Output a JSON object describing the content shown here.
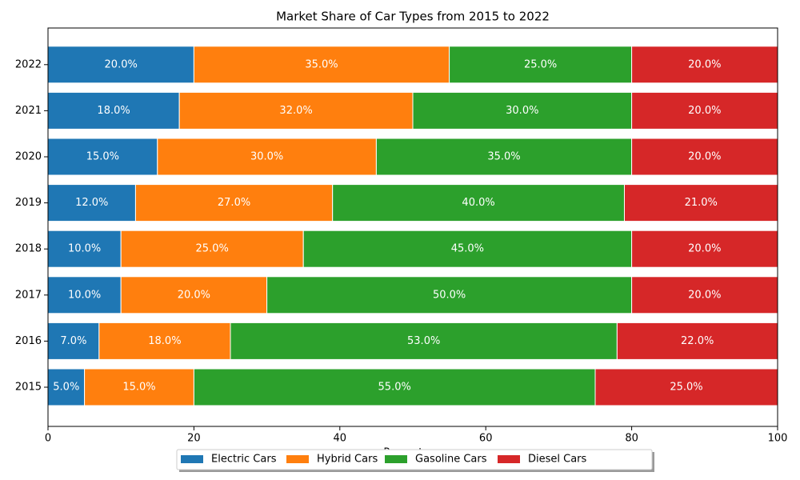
{
  "chart_data": {
    "type": "stacked-barh",
    "title": "Market Share of Car Types from 2015 to 2022",
    "xlabel": "Percentage",
    "categories": [
      "2015",
      "2016",
      "2017",
      "2018",
      "2019",
      "2020",
      "2021",
      "2022"
    ],
    "series": [
      {
        "name": "Electric Cars",
        "color": "#1f77b4",
        "values": [
          5,
          7,
          10,
          10,
          12,
          15,
          18,
          20
        ],
        "value_labels": [
          "5.0%",
          "7.0%",
          "10.0%",
          "10.0%",
          "12.0%",
          "15.0%",
          "18.0%",
          "20.0%"
        ]
      },
      {
        "name": "Hybrid Cars",
        "color": "#ff7f0e",
        "values": [
          15,
          18,
          20,
          25,
          27,
          30,
          32,
          35
        ],
        "value_labels": [
          "15.0%",
          "18.0%",
          "20.0%",
          "25.0%",
          "27.0%",
          "30.0%",
          "32.0%",
          "35.0%"
        ]
      },
      {
        "name": "Gasoline Cars",
        "color": "#2ca02c",
        "values": [
          55,
          53,
          50,
          45,
          40,
          35,
          30,
          25
        ],
        "value_labels": [
          "55.0%",
          "53.0%",
          "50.0%",
          "45.0%",
          "40.0%",
          "35.0%",
          "30.0%",
          "25.0%"
        ]
      },
      {
        "name": "Diesel Cars",
        "color": "#d62728",
        "values": [
          25,
          22,
          20,
          20,
          21,
          20,
          20,
          20
        ],
        "value_labels": [
          "25.0%",
          "22.0%",
          "20.0%",
          "20.0%",
          "21.0%",
          "20.0%",
          "20.0%",
          "20.0%"
        ]
      }
    ],
    "xlim": [
      0,
      100
    ],
    "xticks": [
      0,
      20,
      40,
      60,
      80,
      100
    ],
    "legend": "bottom"
  }
}
